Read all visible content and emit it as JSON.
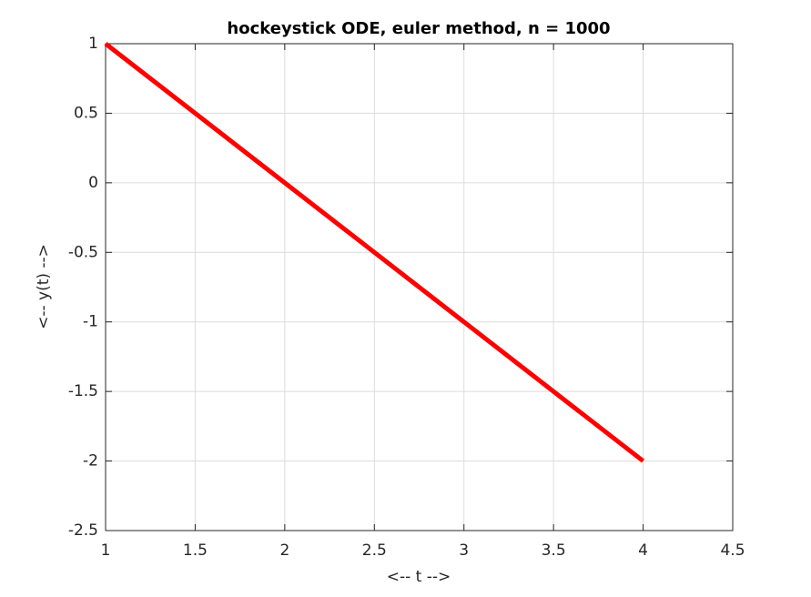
{
  "chart_data": {
    "type": "line",
    "title": "hockeystick ODE, euler method, n = 1000",
    "xlabel": "<-- t -->",
    "ylabel": "<-- y(t) -->",
    "x": [
      1,
      4
    ],
    "series": [
      {
        "color": "#ff0000",
        "values": [
          1,
          -2
        ]
      }
    ],
    "xlim": [
      1,
      4.5
    ],
    "xticks": [
      1,
      1.5,
      2,
      2.5,
      3,
      3.5,
      4,
      4.5
    ],
    "ylim": [
      -2.5,
      1
    ],
    "yticks": [
      -2.5,
      -2,
      -1.5,
      -1,
      -0.5,
      0,
      0.5,
      1
    ],
    "grid": true
  }
}
